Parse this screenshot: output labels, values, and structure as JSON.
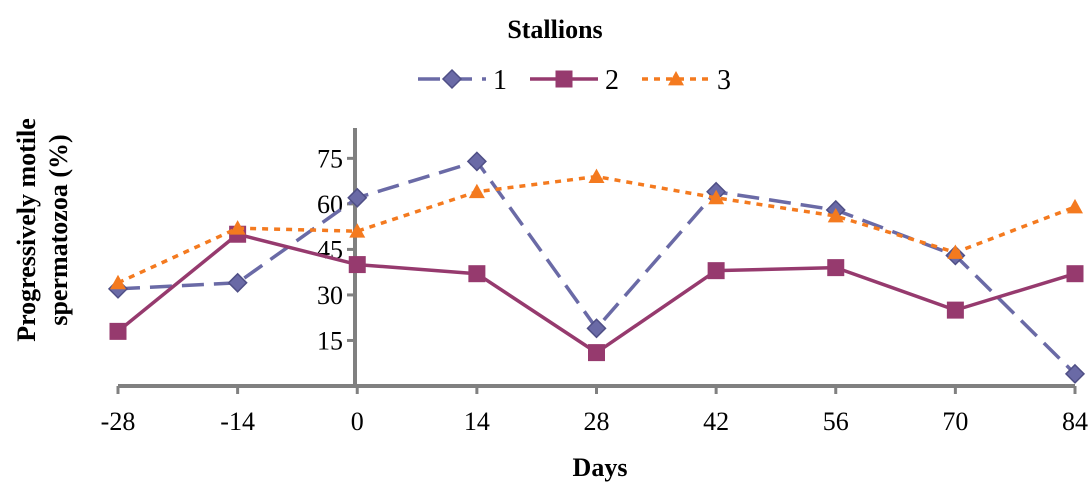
{
  "chart_data": {
    "type": "line",
    "title": "Stallions",
    "xlabel": "Days",
    "ylabel": [
      "Progressively motile",
      "spermatozoa (%)"
    ],
    "x": [
      -28,
      -14,
      0,
      14,
      28,
      42,
      56,
      70,
      84
    ],
    "x_tick_labels": [
      "-28",
      "-14",
      "0",
      "14",
      "28",
      "42",
      "56",
      "70",
      "84"
    ],
    "y_ticks": [
      15,
      30,
      45,
      60,
      75
    ],
    "y_tick_labels": [
      "15",
      "30",
      "45",
      "60",
      "75"
    ],
    "ylim": [
      0,
      85
    ],
    "grid": false,
    "legend_position": "top",
    "series": [
      {
        "name": "1",
        "values": [
          32,
          34,
          62,
          74,
          19,
          64,
          58,
          43,
          4
        ],
        "color": "#6A6AA6",
        "marker": "diamond",
        "line_style": "long-dash"
      },
      {
        "name": "2",
        "values": [
          18,
          50,
          40,
          37,
          11,
          38,
          39,
          25,
          37
        ],
        "color": "#963A6E",
        "marker": "square",
        "line_style": "solid"
      },
      {
        "name": "3",
        "values": [
          34,
          52,
          51,
          64,
          69,
          62,
          56,
          44,
          59
        ],
        "color": "#F47A1F",
        "marker": "triangle",
        "line_style": "dotted"
      }
    ]
  }
}
